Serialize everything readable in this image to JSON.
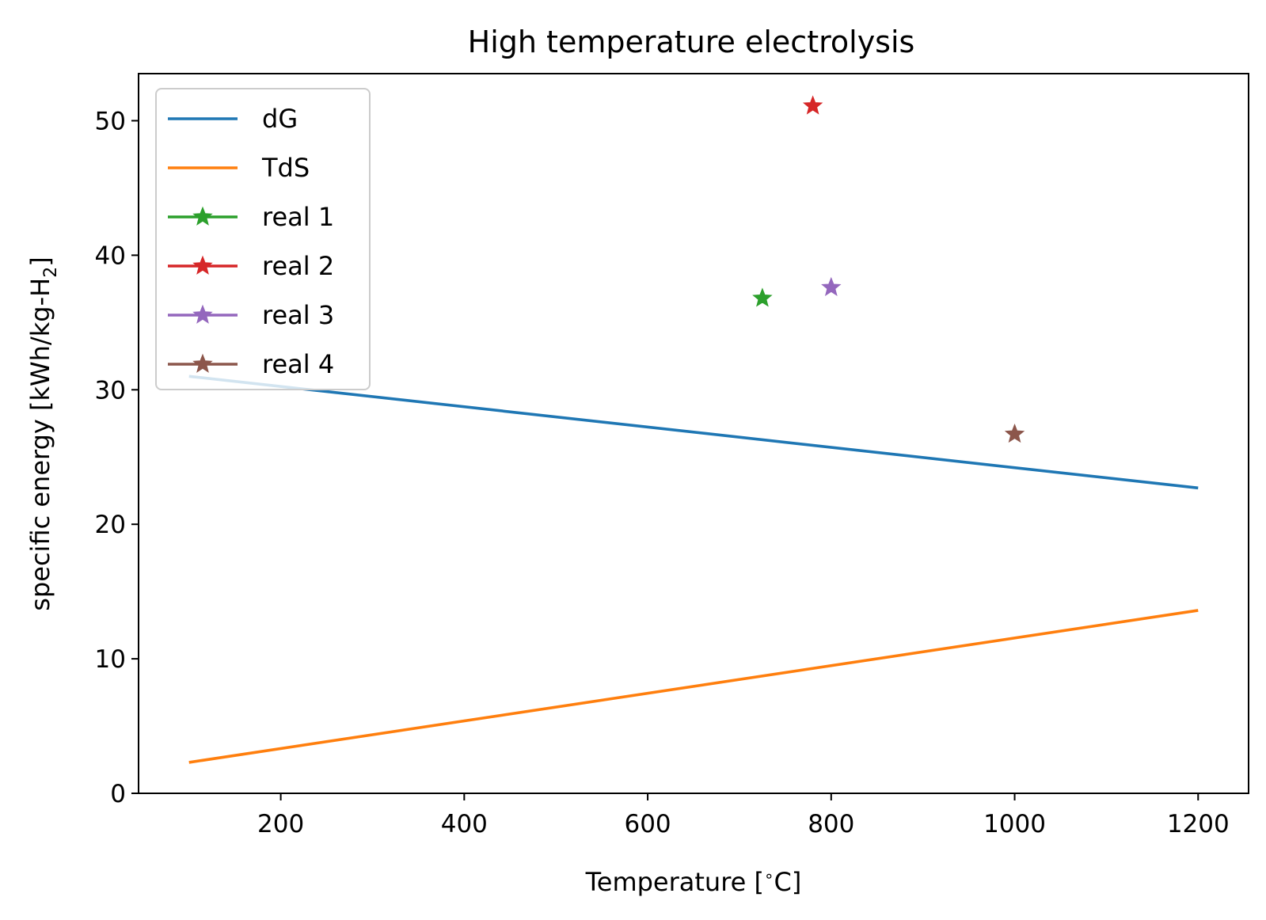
{
  "chart_data": {
    "type": "line",
    "title": "High temperature electrolysis",
    "xlabel": "Temperature [°C]",
    "xlabel_parts": {
      "prefix": "Temperature [",
      "degree": "∘",
      "suffix": "C]"
    },
    "ylabel": "specific energy [kWh/kg-H2]",
    "ylabel_parts": {
      "prefix": "specific energy [kWh/kg-H",
      "subscript": "2",
      "suffix": "]"
    },
    "xlim": [
      45,
      1255
    ],
    "ylim": [
      0,
      53.5
    ],
    "xticks": [
      200,
      400,
      600,
      800,
      1000,
      1200
    ],
    "yticks": [
      0,
      10,
      20,
      30,
      40,
      50
    ],
    "grid": false,
    "legend_position": "top-left",
    "series": [
      {
        "name": "dG",
        "kind": "line",
        "color": "#1f77b4",
        "x": [
          100,
          1200
        ],
        "y": [
          31.0,
          22.7
        ]
      },
      {
        "name": "TdS",
        "kind": "line",
        "color": "#ff7f0e",
        "x": [
          100,
          1200
        ],
        "y": [
          2.3,
          13.6
        ]
      },
      {
        "name": "real 1",
        "kind": "marker",
        "color": "#2ca02c",
        "x": [
          725
        ],
        "y": [
          36.8
        ]
      },
      {
        "name": "real 2",
        "kind": "marker",
        "color": "#d62728",
        "x": [
          780
        ],
        "y": [
          51.1
        ]
      },
      {
        "name": "real 3",
        "kind": "marker",
        "color": "#9467bd",
        "x": [
          800
        ],
        "y": [
          37.6
        ]
      },
      {
        "name": "real 4",
        "kind": "marker",
        "color": "#8c564b",
        "x": [
          1000
        ],
        "y": [
          26.7
        ]
      }
    ]
  }
}
